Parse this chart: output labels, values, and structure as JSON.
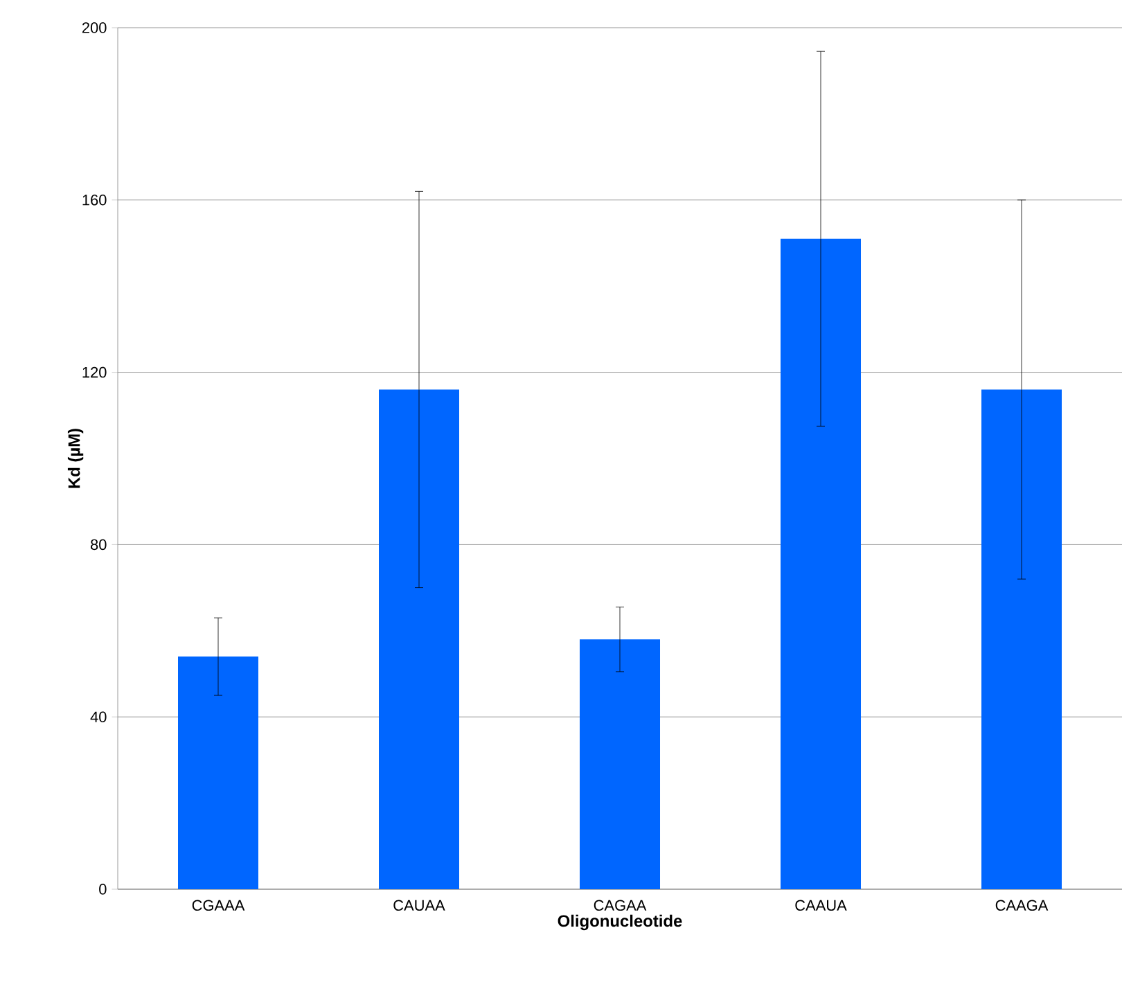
{
  "chart_data": {
    "type": "bar",
    "xlabel": "Oligonucleotide",
    "ylabel": "Kd (µM)",
    "categories": [
      "CGAAA",
      "CAUAA",
      "CAGAA",
      "CAAUA",
      "CAAGA"
    ],
    "values": [
      54,
      116,
      58,
      151,
      116
    ],
    "errors": [
      9,
      46,
      7.5,
      43.5,
      44
    ],
    "color": "#0066ff",
    "ylim": [
      0,
      200
    ],
    "yticks": [
      0,
      40,
      80,
      120,
      160,
      200
    ],
    "grid": "y"
  }
}
